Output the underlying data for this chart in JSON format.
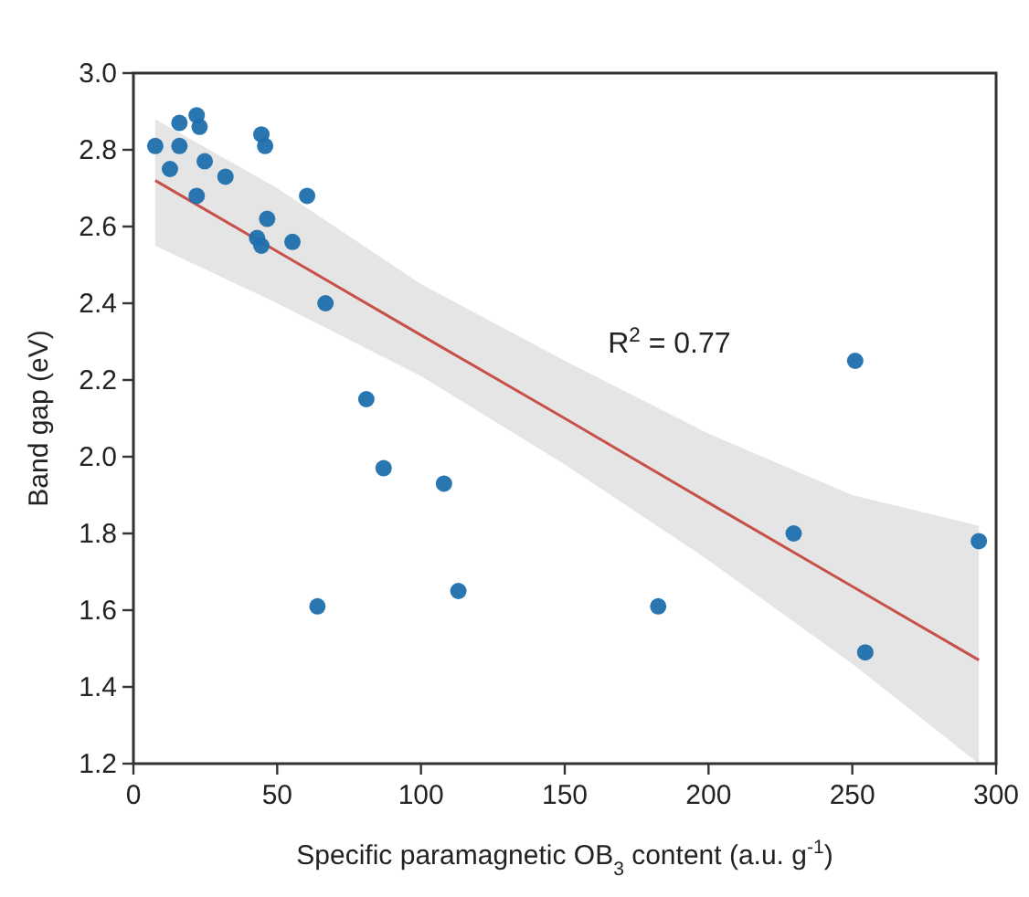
{
  "chart_data": {
    "type": "scatter",
    "xlabel": "Specific paramagnetic OB$_{3}$ content (a.u. g$^{-1}$)",
    "ylabel": "Band gap (eV)",
    "xlim": [
      0,
      300
    ],
    "xticks": [
      0,
      50,
      100,
      150,
      200,
      250,
      300
    ],
    "ylim": [
      1.2,
      3.0
    ],
    "yticks": [
      1.2,
      1.4,
      1.6,
      1.8,
      {
        "value": 2,
        "label": "2.0"
      },
      2.2,
      2.4,
      2.6,
      2.8,
      {
        "value": 3,
        "label": "3.0"
      }
    ],
    "grid": false,
    "annotations": [
      "R$^{2}$ = 0.77"
    ],
    "series": [
      {
        "type": "line",
        "marker": "none",
        "color": "#c8504a",
        "line_style": "solid",
        "x": [
          7.6,
          50,
          100,
          150,
          200,
          250,
          294
        ],
        "values": [
          2.72,
          2.535,
          2.317,
          2.1,
          1.88,
          1.662,
          1.47
        ],
        "lower": [
          2.55,
          2.4,
          2.21,
          1.98,
          1.73,
          1.46,
          1.2
        ],
        "upper": [
          2.88,
          2.7,
          2.45,
          2.25,
          2.06,
          1.9,
          1.82
        ]
      },
      {
        "marker": "circle",
        "color": "#1f6fad",
        "x": [
          7.6,
          16,
          22,
          23,
          16,
          12.7,
          24.8,
          32,
          22,
          44.5,
          45.8,
          60.4,
          46.5,
          43,
          44.5,
          55.3,
          66.8,
          64,
          81,
          87,
          108,
          113,
          182.5,
          229.6,
          251,
          254.5,
          294
        ],
        "values": [
          2.81,
          2.87,
          2.89,
          2.86,
          2.81,
          2.75,
          2.77,
          2.73,
          2.68,
          2.84,
          2.81,
          2.68,
          2.62,
          2.57,
          2.55,
          2.56,
          2.4,
          1.61,
          2.15,
          1.97,
          1.93,
          1.65,
          1.61,
          1.8,
          2.25,
          1.49,
          1.78
        ]
      }
    ]
  }
}
